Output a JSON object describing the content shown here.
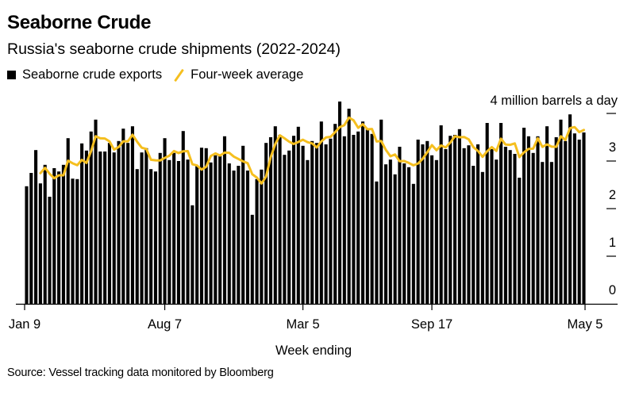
{
  "header": {
    "title": "Seaborne Crude",
    "subtitle": "Russia's seaborne crude shipments (2022-2024)"
  },
  "legend": [
    {
      "label": "Seaborne crude exports",
      "icon": "black-square-icon",
      "color": "#000000"
    },
    {
      "label": "Four-week average",
      "icon": "yellow-line-icon",
      "color": "#f5bf1f"
    }
  ],
  "footer": {
    "source": "Source: Vessel tracking data monitored by Bloomberg"
  },
  "chart_data": {
    "type": "bar",
    "title": "Seaborne Crude",
    "subtitle": "Russia's seaborne crude shipments (2022-2024)",
    "xlabel": "Week ending",
    "ylabel": "4 million barrels a day",
    "ylim": [
      0,
      4
    ],
    "yticks": [
      0,
      1,
      2,
      3,
      4
    ],
    "ytick_labels": [
      "0",
      "1",
      "2",
      "3",
      ""
    ],
    "y_unit_label": "4 million barrels a day",
    "xtick_labels": [
      {
        "label": "Jan 9",
        "index": 0
      },
      {
        "label": "Aug 7",
        "index": 30
      },
      {
        "label": "Mar 5",
        "index": 60
      },
      {
        "label": "Sep 17",
        "index": 88
      },
      {
        "label": "May 5",
        "index": 121
      }
    ],
    "grid": false,
    "legend_position": "top-left",
    "series": [
      {
        "name": "Seaborne crude exports",
        "type": "bar",
        "color": "#000000",
        "values": [
          2.47,
          2.75,
          3.23,
          2.53,
          2.92,
          2.25,
          2.85,
          2.78,
          2.92,
          3.48,
          2.63,
          2.62,
          3.37,
          3.22,
          3.62,
          3.87,
          3.2,
          3.2,
          3.38,
          3.18,
          3.42,
          3.68,
          3.38,
          3.73,
          2.83,
          3.18,
          3.27,
          2.83,
          2.78,
          3.17,
          3.48,
          3.02,
          3.17,
          3.0,
          3.63,
          3.03,
          2.07,
          2.9,
          3.28,
          3.27,
          2.97,
          3.12,
          3.1,
          3.52,
          2.95,
          2.8,
          2.9,
          3.32,
          2.8,
          1.87,
          2.62,
          2.82,
          3.38,
          3.5,
          3.73,
          3.55,
          3.13,
          3.22,
          3.53,
          3.72,
          3.32,
          3.02,
          3.42,
          3.38,
          3.83,
          3.35,
          3.47,
          3.78,
          4.25,
          3.52,
          4.1,
          3.55,
          3.62,
          3.83,
          3.67,
          3.57,
          2.57,
          3.87,
          2.93,
          3.03,
          2.72,
          3.3,
          2.95,
          2.87,
          2.52,
          3.45,
          3.35,
          3.42,
          3.12,
          3.02,
          3.75,
          3.25,
          3.53,
          3.55,
          3.67,
          3.27,
          3.33,
          2.9,
          3.35,
          2.77,
          3.8,
          3.25,
          3.03,
          3.8,
          3.3,
          3.23,
          3.15,
          2.65,
          3.7,
          3.52,
          3.17,
          3.52,
          2.98,
          3.73,
          2.98,
          3.5,
          3.87,
          3.42,
          3.98,
          3.58,
          3.45,
          3.6
        ]
      },
      {
        "name": "Four-week average",
        "type": "line",
        "color": "#f5bf1f",
        "computed_as": "rolling 4-week mean of Seaborne crude exports (starts at 4th week)"
      }
    ]
  }
}
